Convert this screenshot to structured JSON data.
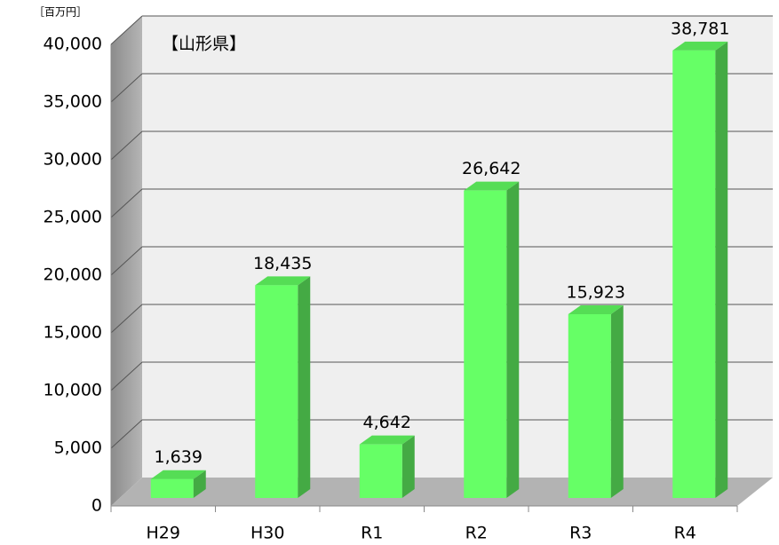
{
  "chart_data": {
    "type": "bar",
    "title": "【山形県】",
    "unit_label": "［百万円］",
    "categories": [
      "H29",
      "H30",
      "R1",
      "R2",
      "R3",
      "R4"
    ],
    "values": [
      1639,
      18435,
      4642,
      26642,
      15923,
      38781
    ],
    "value_labels": [
      "1,639",
      "18,435",
      "4,642",
      "26,642",
      "15,923",
      "38,781"
    ],
    "color": "#66ff66",
    "ylim": [
      0,
      40000
    ],
    "yticks": [
      0,
      {
        "value": 5000,
        "label": "5,000"
      },
      {
        "value": 10000,
        "label": "10,000"
      },
      {
        "value": 15000,
        "label": "15,000"
      },
      {
        "value": 20000,
        "label": "20,000"
      },
      {
        "value": 25000,
        "label": "25,000"
      },
      {
        "value": 30000,
        "label": "30,000"
      },
      {
        "value": 35000,
        "label": "35,000"
      },
      {
        "value": 40000,
        "label": "40,000"
      }
    ],
    "grid": true
  }
}
